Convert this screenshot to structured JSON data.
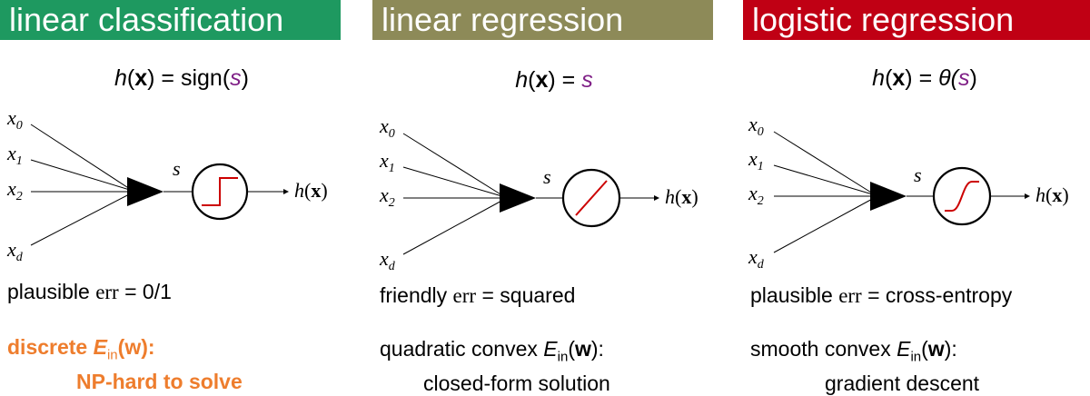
{
  "colors": {
    "green": "#1e9960",
    "olive": "#8d8a58",
    "red": "#c00014",
    "purple": "#7f1f86",
    "orange": "#ee7d2d",
    "curve": "#cc0000"
  },
  "columns": [
    {
      "title": "linear classification",
      "formula": {
        "lhs_h": "h",
        "lhs_x": "x",
        "rhs_pre": "sign(",
        "rhs_s": "s",
        "rhs_post": ")"
      },
      "inputs": [
        "x",
        "x",
        "x",
        "x"
      ],
      "input_subs": [
        "0",
        "1",
        "2",
        "d"
      ],
      "s_label": "s",
      "out_h": "h",
      "out_x": "x",
      "activation": "step",
      "err_word": "plausible",
      "err_label": "err",
      "err_value": "= 0/1",
      "desc_line1_pre": "discrete ",
      "desc_line1_post": ":",
      "desc_line2": "NP-hard to solve"
    },
    {
      "title": "linear regression",
      "formula": {
        "lhs_h": "h",
        "lhs_x": "x",
        "rhs_pre": "",
        "rhs_s": "s",
        "rhs_post": ""
      },
      "inputs": [
        "x",
        "x",
        "x",
        "x"
      ],
      "input_subs": [
        "0",
        "1",
        "2",
        "d"
      ],
      "s_label": "s",
      "out_h": "h",
      "out_x": "x",
      "activation": "linear",
      "err_word": "friendly",
      "err_label": "err",
      "err_value": "= squared",
      "desc_line1_pre": "quadratic convex ",
      "desc_line1_post": ":",
      "desc_line2": "closed-form solution"
    },
    {
      "title": "logistic regression",
      "formula": {
        "lhs_h": "h",
        "lhs_x": "x",
        "rhs_pre": "θ(",
        "rhs_s": "s",
        "rhs_post": ")"
      },
      "inputs": [
        "x",
        "x",
        "x",
        "x"
      ],
      "input_subs": [
        "0",
        "1",
        "2",
        "d"
      ],
      "s_label": "s",
      "out_h": "h",
      "out_x": "x",
      "activation": "sigmoid",
      "err_word": "plausible",
      "err_label": "err",
      "err_value": "= cross-entropy",
      "desc_line1_pre": "smooth convex ",
      "desc_line1_post": ":",
      "desc_line2": "gradient descent"
    }
  ],
  "ein": {
    "E": "E",
    "sub": "in",
    "w": "w"
  }
}
